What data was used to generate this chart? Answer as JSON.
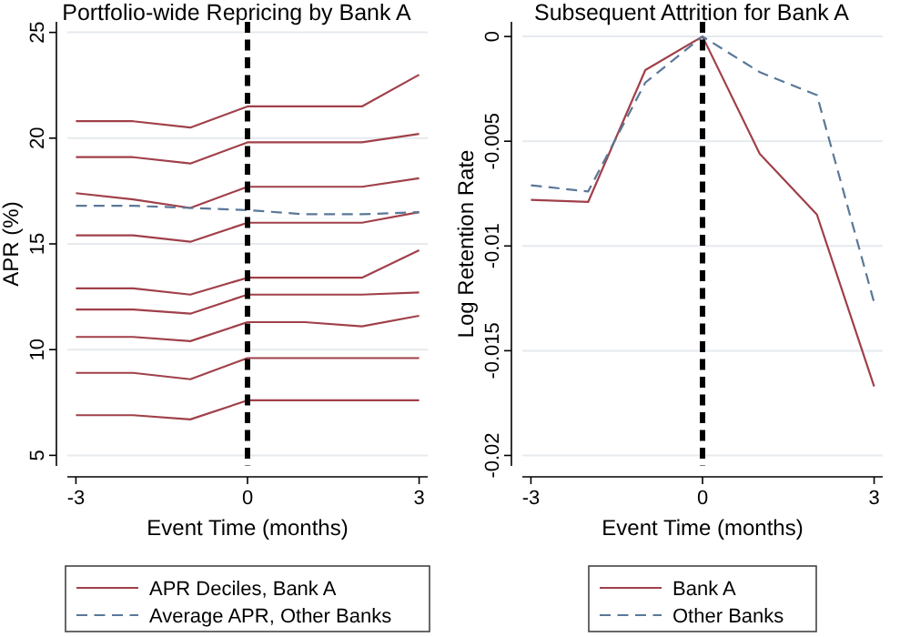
{
  "chart_data": [
    {
      "type": "line",
      "title": "Portfolio-wide Repricing by Bank A",
      "xlabel": "Event Time (months)",
      "ylabel": "APR (%)",
      "x": [
        -3,
        -2,
        -1,
        0,
        1,
        2,
        3
      ],
      "xlim": [
        -3.15,
        3.15
      ],
      "xticks": [
        -3,
        0,
        3
      ],
      "ylim": [
        4.5,
        25.5
      ],
      "yticks": [
        5,
        10,
        15,
        20,
        25
      ],
      "grid": "y",
      "legend": "bottom",
      "ref_lines": [
        {
          "axis": "x",
          "value": 0,
          "color": "#000000",
          "line_style": "dashed"
        }
      ],
      "series": [
        {
          "name": "APR Deciles, Bank A",
          "color": "#a0404a",
          "line_style": "solid",
          "values": [
            20.8,
            20.8,
            20.5,
            21.5,
            21.5,
            21.5,
            23
          ]
        },
        {
          "color": "#a0404a",
          "line_style": "solid",
          "values": [
            19.1,
            19.1,
            18.8,
            19.8,
            19.8,
            19.8,
            20.2
          ]
        },
        {
          "color": "#a0404a",
          "line_style": "solid",
          "values": [
            17.4,
            17.1,
            16.7,
            17.7,
            17.7,
            17.7,
            18.1
          ]
        },
        {
          "color": "#a0404a",
          "line_style": "solid",
          "values": [
            15.4,
            15.4,
            15.1,
            16.0,
            16.0,
            16.0,
            16.5
          ]
        },
        {
          "color": "#a0404a",
          "line_style": "solid",
          "values": [
            12.9,
            12.9,
            12.6,
            13.4,
            13.4,
            13.4,
            14.7
          ]
        },
        {
          "color": "#a0404a",
          "line_style": "solid",
          "values": [
            11.9,
            11.9,
            11.7,
            12.6,
            12.6,
            12.6,
            12.7
          ]
        },
        {
          "color": "#a0404a",
          "line_style": "solid",
          "values": [
            10.6,
            10.6,
            10.4,
            11.3,
            11.3,
            11.1,
            11.6
          ]
        },
        {
          "color": "#a0404a",
          "line_style": "solid",
          "values": [
            8.9,
            8.9,
            8.6,
            9.6,
            9.6,
            9.6,
            9.6
          ]
        },
        {
          "color": "#a0404a",
          "line_style": "solid",
          "values": [
            6.9,
            6.9,
            6.7,
            7.6,
            7.6,
            7.6,
            7.6
          ]
        },
        {
          "name": "Average APR, Other Banks",
          "color": "#5a7898",
          "line_style": "dashed",
          "values": [
            16.8,
            16.8,
            16.7,
            16.6,
            16.4,
            16.4,
            16.5
          ]
        }
      ]
    },
    {
      "type": "line",
      "title": "Subsequent Attrition for Bank A",
      "xlabel": "Event Time (months)",
      "ylabel": "Log Retention Rate",
      "x": [
        -3,
        -2,
        -1,
        0,
        1,
        2,
        3
      ],
      "xlim": [
        -3.15,
        3.15
      ],
      "xticks": [
        -3,
        0,
        3
      ],
      "ylim": [
        -0.0205,
        0.0007
      ],
      "yticks": [
        {
          "value": 0,
          "label": "0"
        },
        {
          "value": -0.005,
          "label": "-0.005"
        },
        {
          "value": -0.01,
          "label": "-0.01"
        },
        {
          "value": -0.015,
          "label": "-0.015"
        },
        {
          "value": -0.02,
          "label": "-0.02"
        }
      ],
      "grid": "y",
      "legend": "bottom",
      "ref_lines": [
        {
          "axis": "x",
          "value": 0,
          "color": "#000000",
          "line_style": "dashed"
        }
      ],
      "series": [
        {
          "name": "Bank A",
          "color": "#a0404a",
          "line_style": "solid",
          "values": [
            -0.0078,
            -0.0079,
            -0.0016,
            0,
            -0.0056,
            -0.0085,
            -0.0167
          ]
        },
        {
          "name": "Other Banks",
          "color": "#5a7898",
          "line_style": "dashed",
          "values": [
            -0.0071,
            -0.0074,
            -0.0022,
            0,
            -0.0017,
            -0.0028,
            -0.0127
          ]
        }
      ]
    }
  ]
}
